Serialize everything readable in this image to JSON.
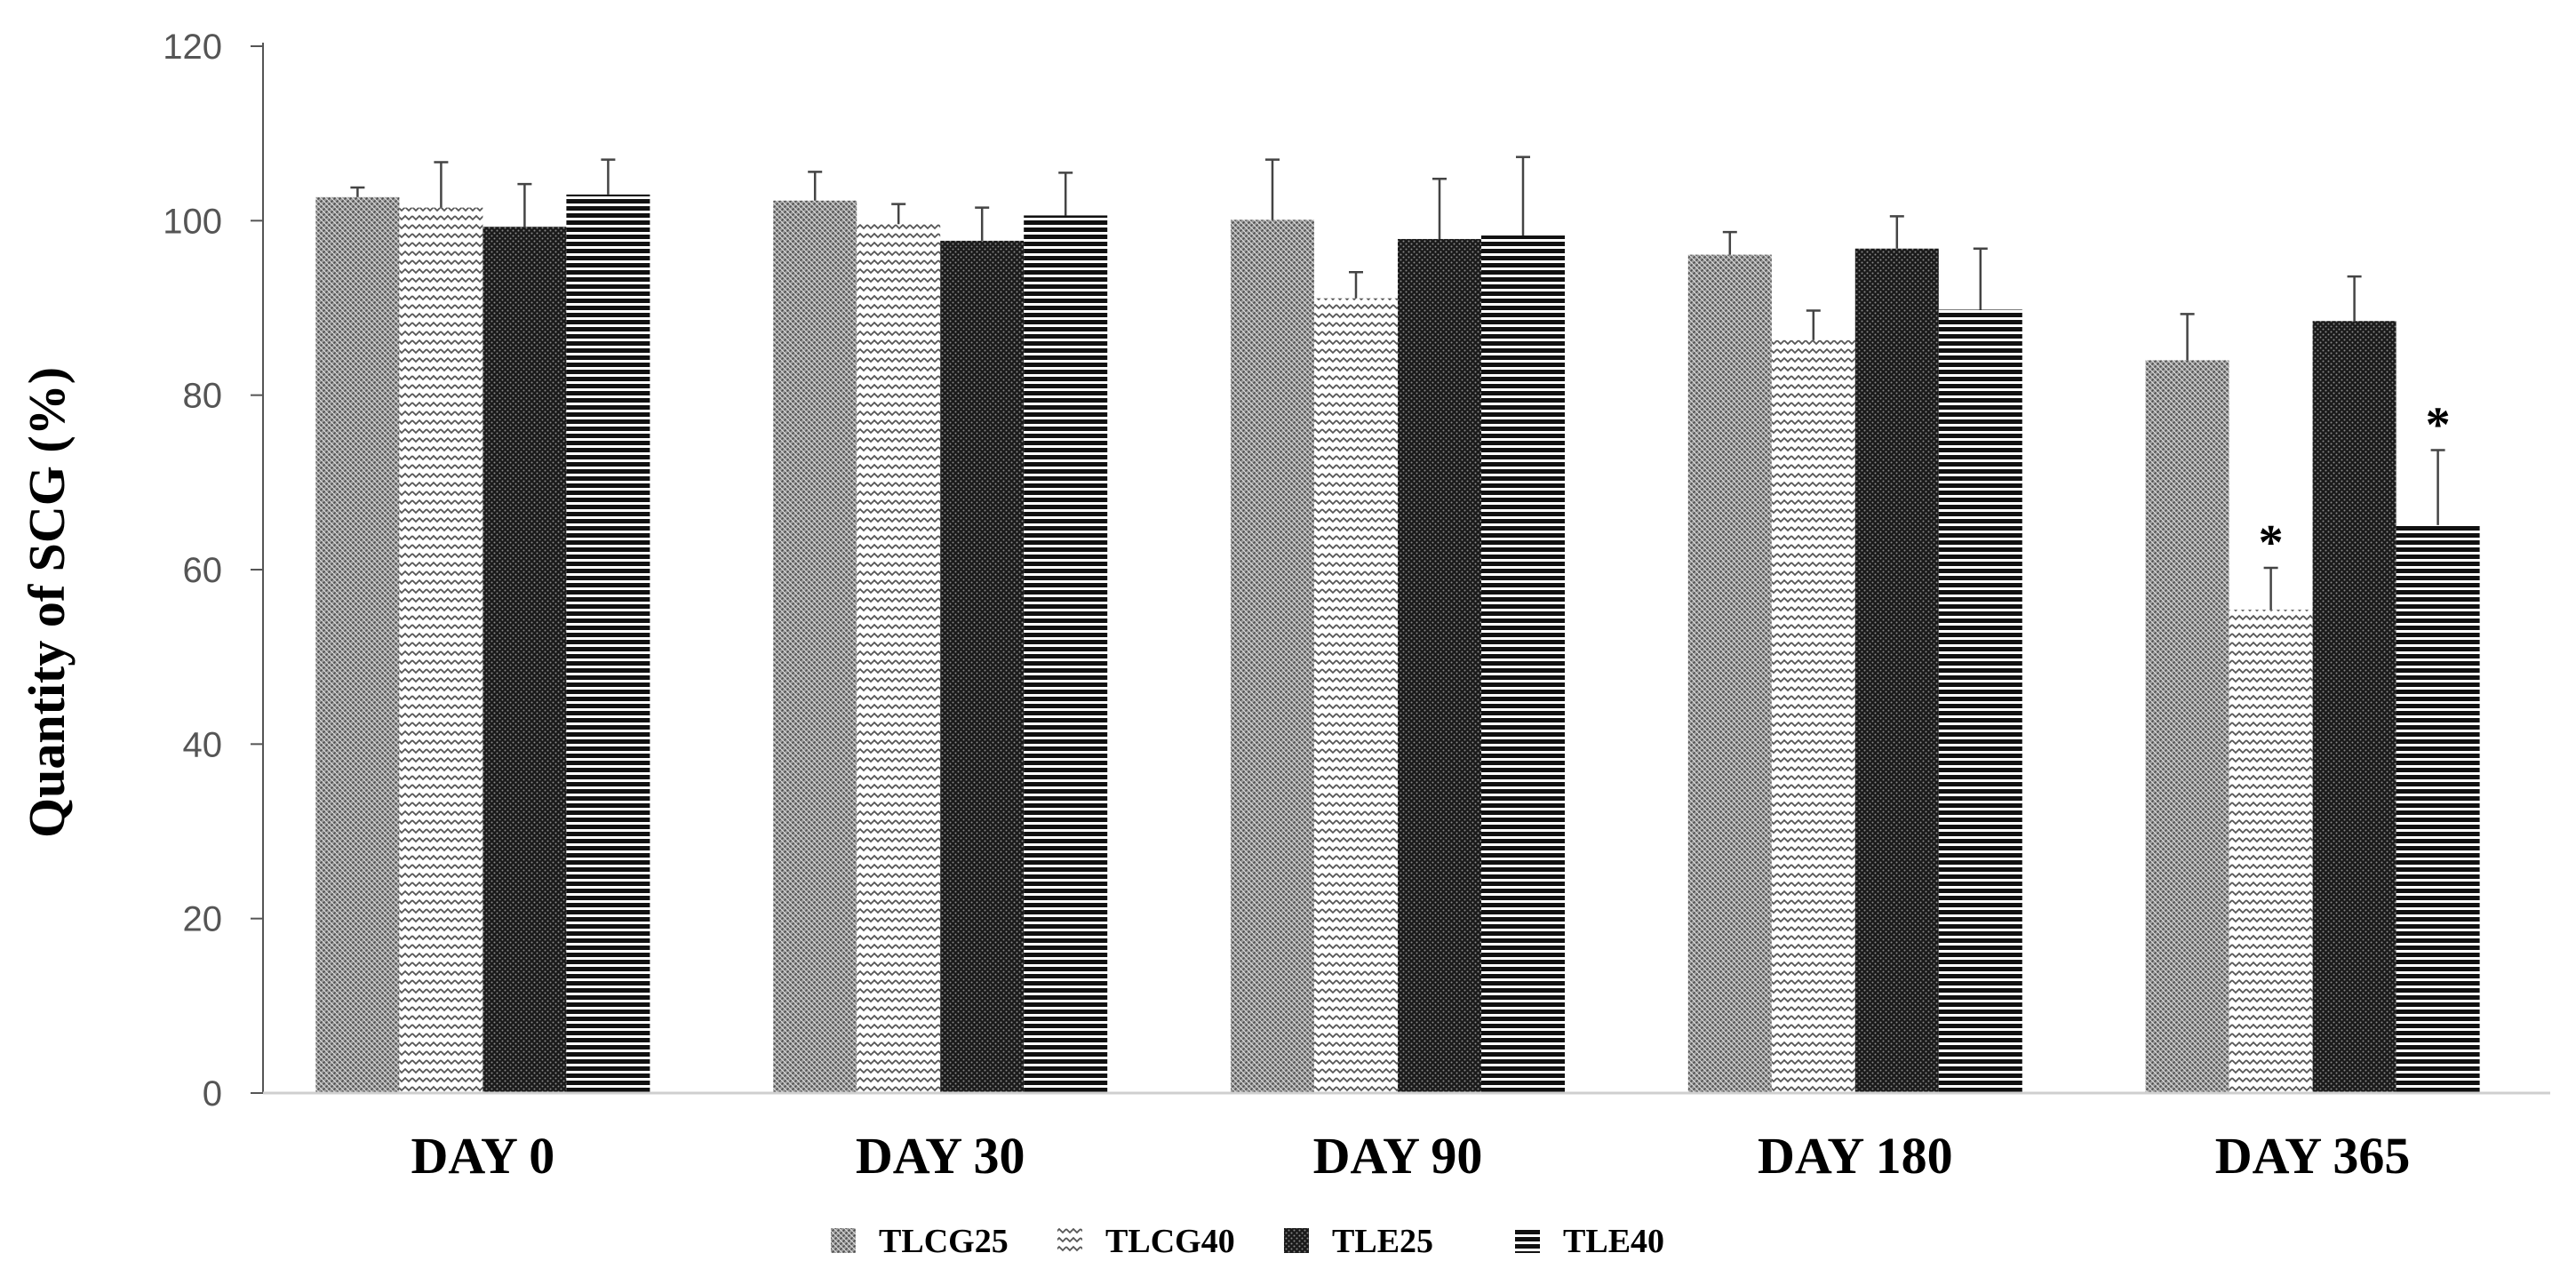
{
  "chart_data": {
    "type": "bar",
    "title": "",
    "xlabel": "",
    "ylabel": "Quantity of SCG (%)",
    "ylim": [
      0,
      120
    ],
    "yticks": [
      0,
      20,
      40,
      60,
      80,
      100,
      120
    ],
    "grid": false,
    "legend_position": "bottom",
    "categories": [
      "DAY 0",
      "DAY 30",
      "DAY 90",
      "DAY 180",
      "DAY 365"
    ],
    "series": [
      {
        "name": "TLCG25",
        "pattern": "crosshatch",
        "color": "#8c8c8c",
        "values": [
          102.7,
          102.3,
          100.1,
          96.1,
          84.0
        ],
        "errors": [
          1.1,
          3.3,
          6.9,
          2.6,
          5.3
        ],
        "significance": [
          "",
          "",
          "",
          "",
          ""
        ]
      },
      {
        "name": "TLCG40",
        "pattern": "wave",
        "color": "#c0c0c0",
        "values": [
          101.5,
          99.6,
          91.1,
          86.3,
          55.4
        ],
        "errors": [
          5.2,
          2.3,
          3.0,
          3.4,
          4.8
        ],
        "significance": [
          "",
          "",
          "",
          "",
          "*"
        ]
      },
      {
        "name": "TLE25",
        "pattern": "dots-dark",
        "color": "#1f1f1f",
        "values": [
          99.3,
          97.7,
          97.9,
          96.8,
          88.5
        ],
        "errors": [
          4.9,
          3.8,
          6.9,
          3.7,
          5.1
        ],
        "significance": [
          "",
          "",
          "",
          "",
          ""
        ]
      },
      {
        "name": "TLE40",
        "pattern": "horizontal-lines",
        "color": "#000000",
        "values": [
          103.0,
          100.6,
          98.3,
          89.8,
          65.1
        ],
        "errors": [
          4.0,
          4.9,
          9.0,
          7.0,
          8.6
        ],
        "significance": [
          "",
          "",
          "",
          "",
          "*"
        ]
      }
    ]
  }
}
